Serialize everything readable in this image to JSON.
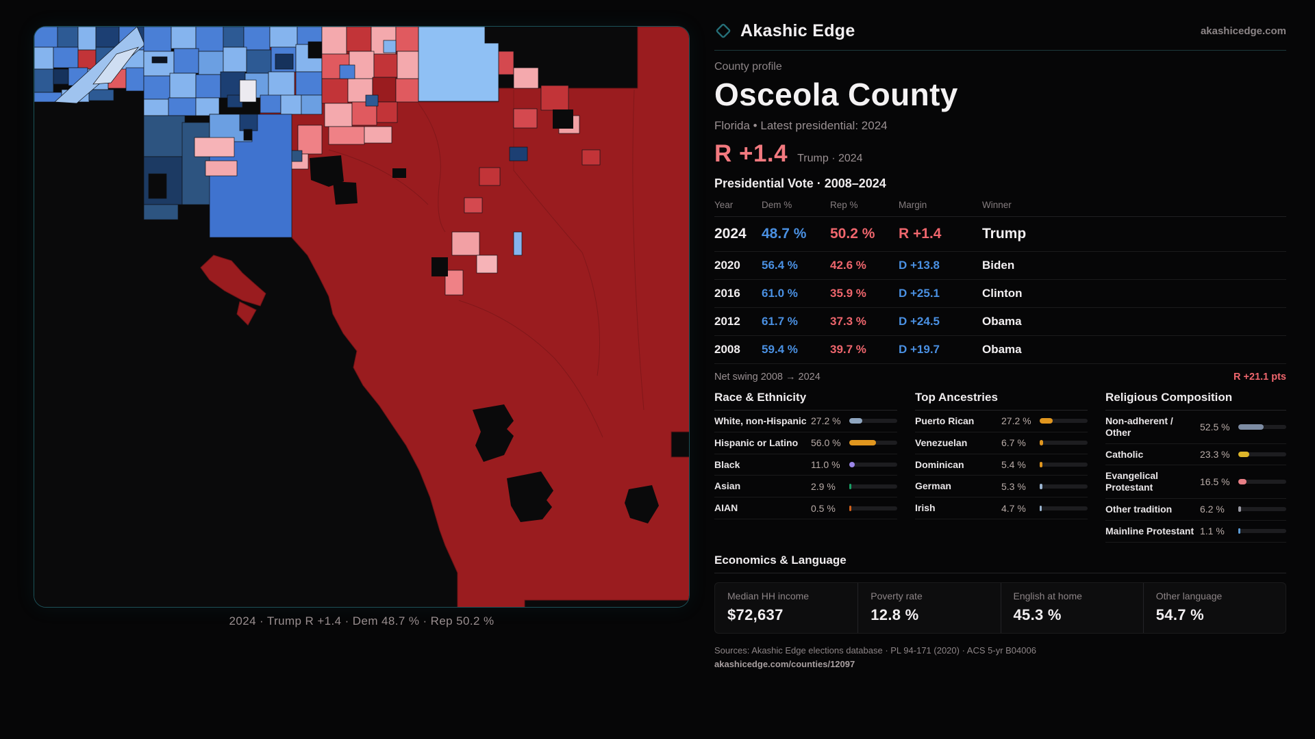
{
  "brand": {
    "name": "Akashic Edge",
    "domain": "akashicedge.com"
  },
  "profile": {
    "kicker": "County profile",
    "title": "Osceola County",
    "subtitle": "Florida • Latest presidential: 2024",
    "lean": "R +1.4",
    "lean_note": "Trump · 2024"
  },
  "map": {
    "caption": "2024 · Trump R +1.4 · Dem 48.7 % · Rep 50.2 %",
    "colors": {
      "rep_base": "#9a1c1f",
      "rep_bright": "#c23438",
      "rep_soft": "#e05a5f",
      "pink": "#f4a9ad",
      "pale_pink": "#f6b3b7",
      "white_precinct": "#eceaf0",
      "dem_medium": "#3f73cf",
      "dem_bright": "#4a7fd6",
      "dem_light": "#85b4ee",
      "dem_pale": "#c6d9f0",
      "dem_big_rect": "#8fc0f4",
      "navy": "#1c3f73",
      "steel": "#2d5480",
      "no_data": "#0a0a0b",
      "panel_border": "#1c5158"
    }
  },
  "vote_table": {
    "title": "Presidential Vote · 2008–2024",
    "columns": [
      "Year",
      "Dem %",
      "Rep %",
      "Margin",
      "Winner"
    ],
    "rows": [
      {
        "year": "2024",
        "dem": "48.7 %",
        "rep": "50.2 %",
        "margin": "R +1.4",
        "winner": "Trump",
        "party": "R"
      },
      {
        "year": "2020",
        "dem": "56.4 %",
        "rep": "42.6 %",
        "margin": "D +13.8",
        "winner": "Biden",
        "party": "D"
      },
      {
        "year": "2016",
        "dem": "61.0 %",
        "rep": "35.9 %",
        "margin": "D +25.1",
        "winner": "Clinton",
        "party": "D"
      },
      {
        "year": "2012",
        "dem": "61.7 %",
        "rep": "37.3 %",
        "margin": "D +24.5",
        "winner": "Obama",
        "party": "D"
      },
      {
        "year": "2008",
        "dem": "59.4 %",
        "rep": "39.7 %",
        "margin": "D +19.7",
        "winner": "Obama",
        "party": "D"
      }
    ],
    "net_swing_label": "Net swing 2008 → 2024",
    "net_swing_value": "R +21.1 pts"
  },
  "race": {
    "title": "Race & Ethnicity",
    "rows": [
      {
        "label": "White, non-Hispanic",
        "value": "27.2 %",
        "pct": 27.2,
        "color": "#8fa6c0"
      },
      {
        "label": "Hispanic or Latino",
        "value": "56.0 %",
        "pct": 56.0,
        "color": "#e0961f"
      },
      {
        "label": "Black",
        "value": "11.0 %",
        "pct": 11.0,
        "color": "#9b86e8"
      },
      {
        "label": "Asian",
        "value": "2.9 %",
        "pct": 2.9,
        "color": "#18a065"
      },
      {
        "label": "AIAN",
        "value": "0.5 %",
        "pct": 0.5,
        "color": "#d2601a"
      }
    ]
  },
  "ancestries": {
    "title": "Top Ancestries",
    "rows": [
      {
        "label": "Puerto Rican",
        "value": "27.2 %",
        "pct": 27.2,
        "color": "#e0961f"
      },
      {
        "label": "Venezuelan",
        "value": "6.7 %",
        "pct": 6.7,
        "color": "#e0961f"
      },
      {
        "label": "Dominican",
        "value": "5.4 %",
        "pct": 5.4,
        "color": "#e0961f"
      },
      {
        "label": "German",
        "value": "5.3 %",
        "pct": 5.3,
        "color": "#9ab4d0"
      },
      {
        "label": "Irish",
        "value": "4.7 %",
        "pct": 4.7,
        "color": "#9ab4d0"
      }
    ]
  },
  "religion": {
    "title": "Religious Composition",
    "rows": [
      {
        "label": "Non-adherent / Other",
        "value": "52.5 %",
        "pct": 52.5,
        "color": "#7d8ca3"
      },
      {
        "label": "Catholic",
        "value": "23.3 %",
        "pct": 23.3,
        "color": "#ddb52a"
      },
      {
        "label": "Evangelical Protestant",
        "value": "16.5 %",
        "pct": 16.5,
        "color": "#e87f86"
      },
      {
        "label": "Other tradition",
        "value": "6.2 %",
        "pct": 6.2,
        "color": "#9a9aa4"
      },
      {
        "label": "Mainline Protestant",
        "value": "1.1 %",
        "pct": 1.1,
        "color": "#5b9bd5"
      }
    ]
  },
  "economics": {
    "title": "Economics & Language",
    "stats": [
      {
        "label": "Median HH income",
        "value": "$72,637"
      },
      {
        "label": "Poverty rate",
        "value": "12.8 %"
      },
      {
        "label": "English at home",
        "value": "45.3 %"
      },
      {
        "label": "Other language",
        "value": "54.7 %"
      }
    ]
  },
  "sources": {
    "line1": "Sources: Akashic Edge elections database · PL 94-171 (2020) · ACS 5-yr B04006",
    "line2": "akashicedge.com/counties/12097"
  }
}
